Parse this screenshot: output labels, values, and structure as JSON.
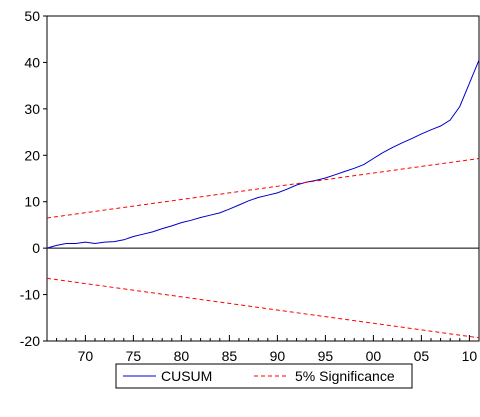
{
  "chart_data": {
    "type": "line",
    "title": "",
    "xlabel": "",
    "ylabel": "",
    "xlim": [
      1966,
      2011
    ],
    "ylim": [
      -20,
      50
    ],
    "grid": false,
    "legend_position": "bottom",
    "colors": {
      "cusum": "#0000cc",
      "significance": "#ff0000",
      "zero_line": "#000000"
    },
    "y_ticks": [
      {
        "value": 50,
        "label": "50"
      },
      {
        "value": 40,
        "label": "40"
      },
      {
        "value": 30,
        "label": "30"
      },
      {
        "value": 20,
        "label": "20"
      },
      {
        "value": 10,
        "label": "10"
      },
      {
        "value": 0,
        "label": "0"
      },
      {
        "value": -10,
        "label": "-10"
      },
      {
        "value": -20,
        "label": "-20"
      }
    ],
    "x_ticks": [
      {
        "value": 1970,
        "label": "70"
      },
      {
        "value": 1975,
        "label": "75"
      },
      {
        "value": 1980,
        "label": "80"
      },
      {
        "value": 1985,
        "label": "85"
      },
      {
        "value": 1990,
        "label": "90"
      },
      {
        "value": 1995,
        "label": "95"
      },
      {
        "value": 2000,
        "label": "00"
      },
      {
        "value": 2005,
        "label": "05"
      },
      {
        "value": 2010,
        "label": "10"
      }
    ],
    "series": [
      {
        "name": "CUSUM",
        "style": "solid",
        "x": [
          1966,
          1967,
          1968,
          1969,
          1970,
          1971,
          1972,
          1973,
          1974,
          1975,
          1976,
          1977,
          1978,
          1979,
          1980,
          1981,
          1982,
          1983,
          1984,
          1985,
          1986,
          1987,
          1988,
          1989,
          1990,
          1991,
          1992,
          1993,
          1994,
          1995,
          1996,
          1997,
          1998,
          1999,
          2000,
          2001,
          2002,
          2003,
          2004,
          2005,
          2006,
          2007,
          2008,
          2009,
          2010,
          2011
        ],
        "y": [
          0,
          0.6,
          1.0,
          1.0,
          1.3,
          1.0,
          1.3,
          1.4,
          1.8,
          2.5,
          3.0,
          3.5,
          4.2,
          4.8,
          5.5,
          6.0,
          6.6,
          7.1,
          7.6,
          8.4,
          9.3,
          10.2,
          10.9,
          11.4,
          11.9,
          12.7,
          13.6,
          14.2,
          14.6,
          15.1,
          15.8,
          16.5,
          17.2,
          18.0,
          19.3,
          20.6,
          21.7,
          22.7,
          23.6,
          24.6,
          25.5,
          26.3,
          27.6,
          30.5,
          35.5,
          40.5
        ]
      },
      {
        "name": "5% Significance",
        "style": "dashed",
        "x": [
          1966,
          2011
        ],
        "y": [
          6.5,
          19.3
        ]
      },
      {
        "name": "",
        "style": "dashed",
        "x": [
          1966,
          2011
        ],
        "y": [
          -6.5,
          -19.3
        ]
      }
    ],
    "legend": [
      {
        "label": "CUSUM",
        "style": "solid"
      },
      {
        "label": "5% Significance",
        "style": "dashed"
      }
    ]
  }
}
